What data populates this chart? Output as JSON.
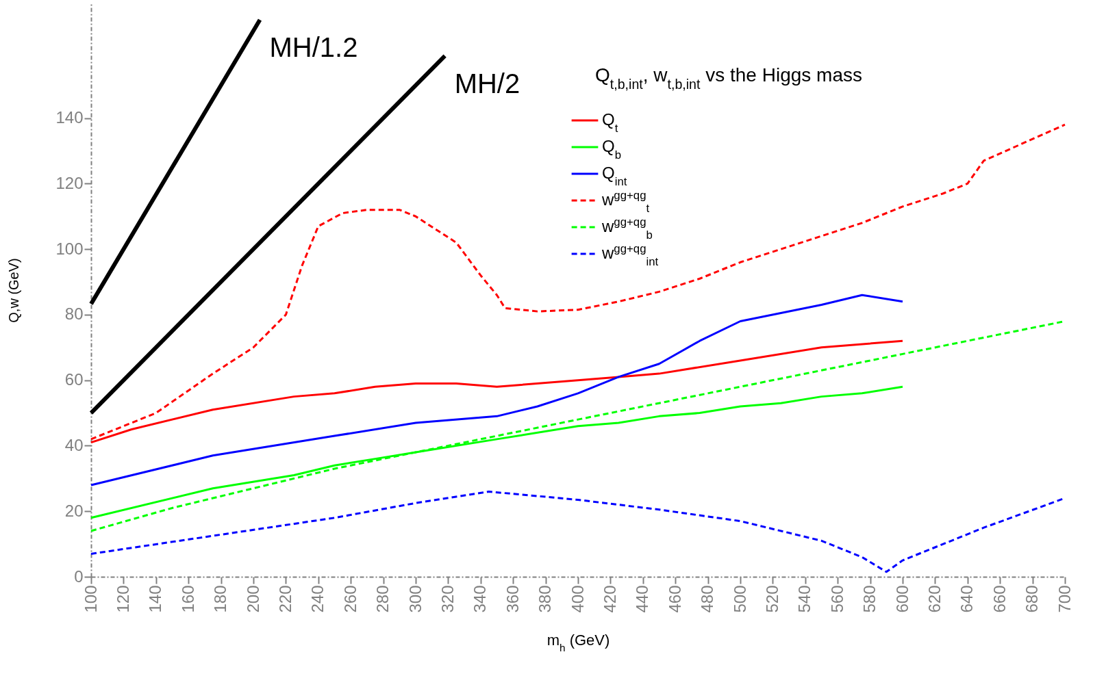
{
  "chart_data": {
    "type": "line",
    "title": "Q$_{t,b,int}$, w$_{t,b,int}$ vs the Higgs mass",
    "xlabel": "m$_{h}$ (GeV)",
    "ylabel": "Q,w (GeV)",
    "xlim": [
      100,
      700
    ],
    "ylim": [
      0,
      175
    ],
    "xticks": [
      100,
      120,
      140,
      160,
      180,
      200,
      220,
      240,
      260,
      280,
      300,
      320,
      340,
      360,
      380,
      400,
      420,
      440,
      460,
      480,
      500,
      520,
      540,
      560,
      580,
      600,
      620,
      640,
      660,
      680,
      700
    ],
    "yticks": [
      0,
      20,
      40,
      60,
      80,
      100,
      120,
      140
    ],
    "grid": false,
    "legend": "top left",
    "series": [
      {
        "name": "Q$_{t}$",
        "color": "#ff0000",
        "line_style": "solid",
        "x": [
          100,
          125,
          175,
          225,
          250,
          275,
          300,
          325,
          350,
          400,
          425,
          450,
          500,
          550,
          600
        ],
        "values": [
          41,
          45,
          51,
          55,
          56,
          58,
          59,
          59,
          58,
          60,
          61,
          62,
          66,
          70,
          72
        ]
      },
      {
        "name": "Q$_{b}$",
        "color": "#00ff00",
        "line_style": "solid",
        "x": [
          100,
          175,
          225,
          250,
          275,
          300,
          350,
          400,
          425,
          450,
          475,
          500,
          525,
          550,
          575,
          600
        ],
        "values": [
          18,
          27,
          31,
          34,
          36,
          38,
          42,
          46,
          47,
          49,
          50,
          52,
          53,
          55,
          56,
          58
        ]
      },
      {
        "name": "Q$_{int}$",
        "color": "#0000ff",
        "line_style": "solid",
        "x": [
          100,
          175,
          250,
          300,
          350,
          375,
          400,
          425,
          450,
          475,
          500,
          550,
          575,
          600
        ],
        "values": [
          28,
          37,
          43,
          47,
          49,
          52,
          56,
          61,
          65,
          72,
          78,
          83,
          86,
          84
        ]
      },
      {
        "name": "w$^{gg+qg}$$_{t}$",
        "color": "#ff0000",
        "line_style": "dashed",
        "x": [
          100,
          140,
          175,
          200,
          220,
          230,
          240,
          255,
          270,
          290,
          300,
          325,
          340,
          350,
          355,
          375,
          400,
          425,
          450,
          475,
          500,
          525,
          550,
          575,
          600,
          625,
          640,
          650,
          700
        ],
        "values": [
          42,
          50,
          62,
          70,
          80,
          95,
          107,
          111,
          112,
          112,
          110,
          102,
          92,
          86,
          82,
          81,
          81.5,
          84,
          87,
          91,
          96,
          100,
          104,
          108,
          113,
          117,
          120,
          127,
          138
        ]
      },
      {
        "name": "w$^{gg+qg}$$_{b}$",
        "color": "#00ff00",
        "line_style": "dashed",
        "x": [
          100,
          150,
          200,
          250,
          300,
          350,
          400,
          450,
          500,
          550,
          600,
          650,
          700
        ],
        "values": [
          14,
          21,
          27,
          33,
          38,
          43,
          48,
          53,
          58,
          63,
          68,
          73,
          78
        ]
      },
      {
        "name": "w$^{gg+qg}$$_{int}$",
        "color": "#0000ff",
        "line_style": "dashed",
        "x": [
          100,
          175,
          250,
          300,
          345,
          400,
          450,
          500,
          550,
          575,
          590,
          600,
          650,
          700
        ],
        "values": [
          7,
          12.5,
          18,
          22.5,
          26,
          23.5,
          20.5,
          17,
          11,
          6,
          1.5,
          5,
          15,
          24
        ]
      },
      {
        "color": "#000000",
        "line_style": "solid",
        "x": [
          100,
          204
        ],
        "values": [
          83.3,
          170
        ]
      },
      {
        "color": "#000000",
        "line_style": "solid",
        "x": [
          100,
          318
        ],
        "values": [
          50,
          159
        ]
      }
    ],
    "annotations": [
      "MH/1.2",
      "MH/2"
    ]
  }
}
